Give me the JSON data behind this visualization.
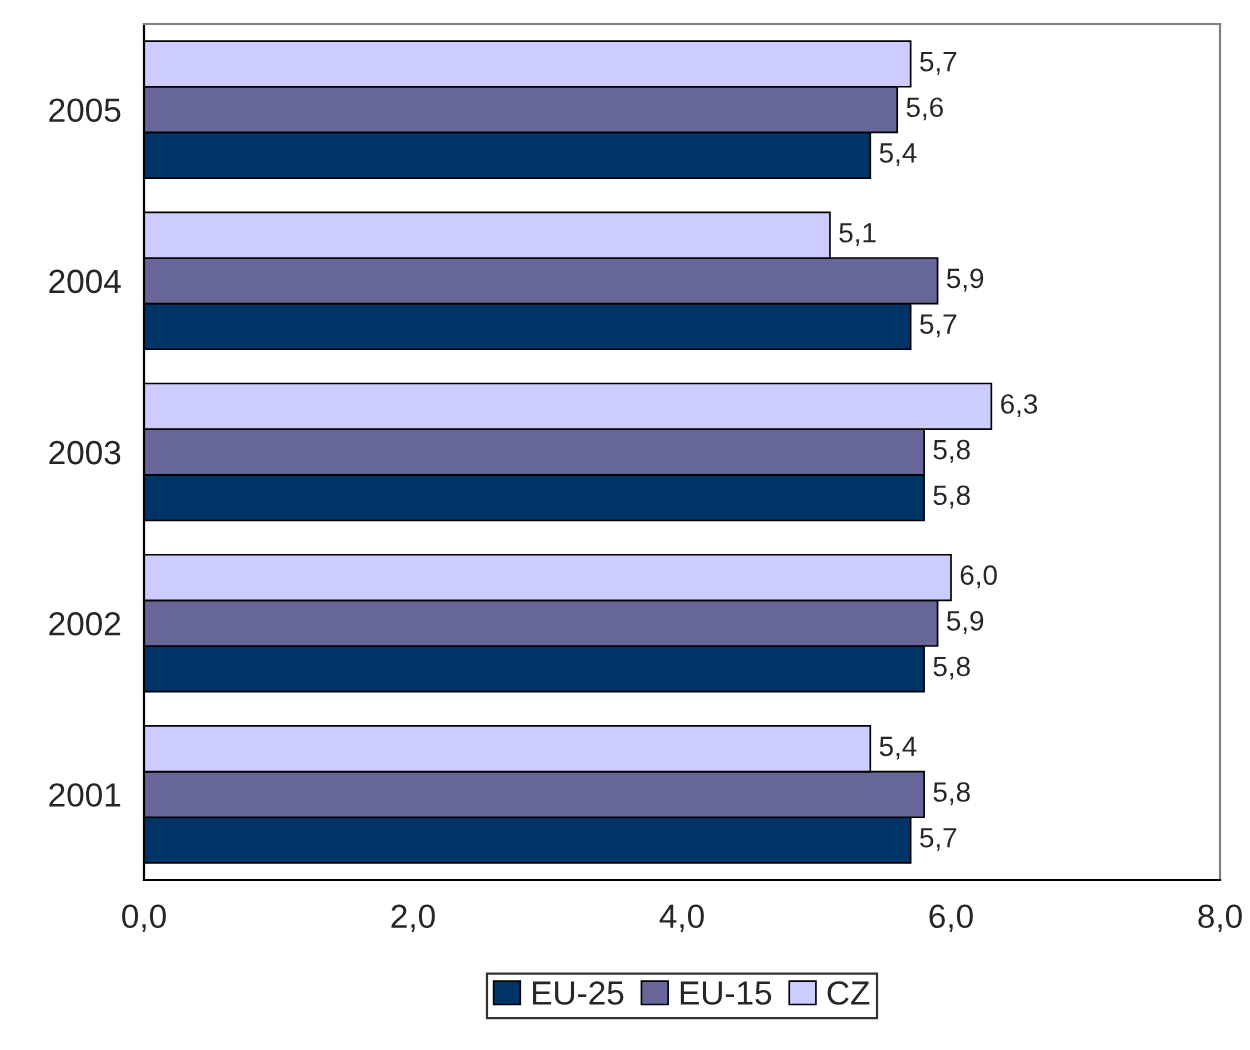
{
  "chart_data": {
    "type": "bar",
    "orientation": "horizontal",
    "categories": [
      "2005",
      "2004",
      "2003",
      "2002",
      "2001"
    ],
    "series": [
      {
        "name": "EU-25",
        "color": "#003366",
        "values": [
          5.4,
          5.7,
          5.8,
          5.8,
          5.7
        ],
        "value_labels": [
          "5,4",
          "5,7",
          "5,8",
          "5,8",
          "5,7"
        ]
      },
      {
        "name": "EU-15",
        "color": "#666699",
        "values": [
          5.6,
          5.9,
          5.8,
          5.9,
          5.8
        ],
        "value_labels": [
          "5,6",
          "5,9",
          "5,8",
          "5,9",
          "5,8"
        ]
      },
      {
        "name": "CZ",
        "color": "#ccccff",
        "values": [
          5.7,
          5.1,
          6.3,
          6.0,
          5.4
        ],
        "value_labels": [
          "5,7",
          "5,1",
          "6,3",
          "6,0",
          "5,4"
        ]
      }
    ],
    "xlim": [
      0,
      8
    ],
    "xticks": [
      {
        "value": 0,
        "label": "0,0"
      },
      {
        "value": 2,
        "label": "2,0"
      },
      {
        "value": 4,
        "label": "4,0"
      },
      {
        "value": 6,
        "label": "6,0"
      },
      {
        "value": 8,
        "label": "8,0"
      }
    ],
    "grid": false,
    "legend": "bottom"
  }
}
